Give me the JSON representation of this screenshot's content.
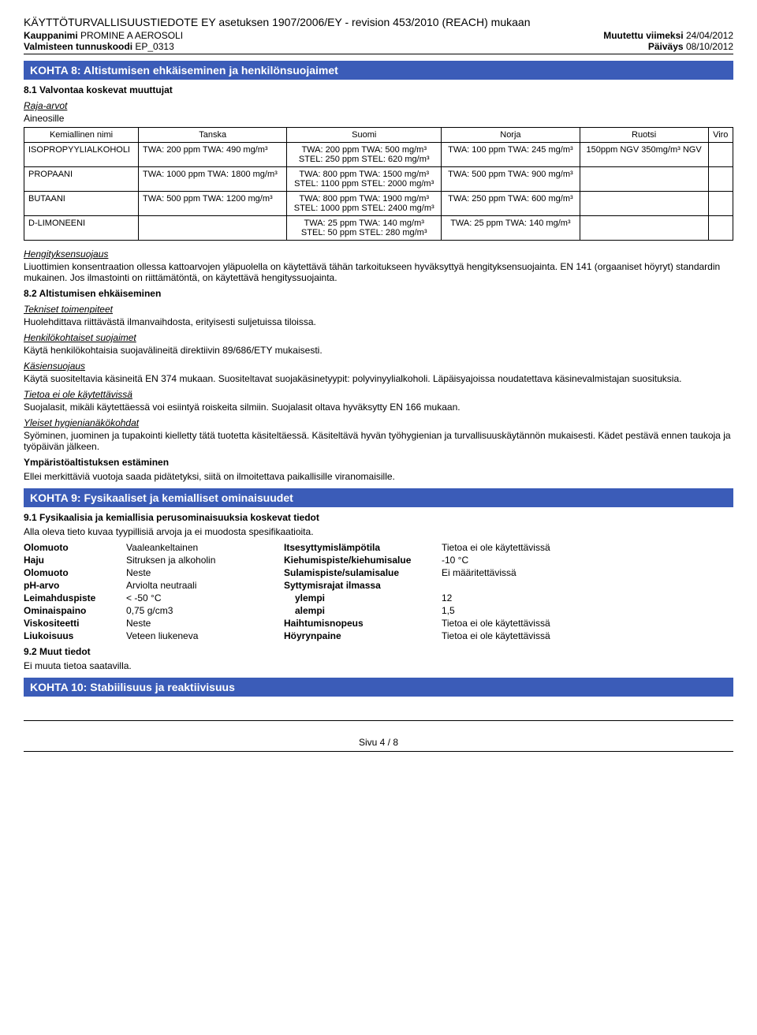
{
  "header": {
    "reg_line": "KÄYTTÖTURVALLISUUSTIEDOTE EY asetuksen 1907/2006/EY - revision 453/2010 (REACH) mukaan",
    "name_label": "Kauppanimi",
    "name_value": "PROMINE A AEROSOLI",
    "changed_label": "Muutettu viimeksi",
    "changed_value": "24/04/2012",
    "code_label": "Valmisteen tunnuskoodi",
    "code_value": "EP_0313",
    "date_label": "Päiväys",
    "date_value": "08/10/2012"
  },
  "section8": {
    "title": "KOHTA 8: Altistumisen ehkäiseminen ja henkilönsuojaimet",
    "sub1": "8.1 Valvontaa koskevat muuttujat",
    "raja": "Raja-arvot",
    "aineosille": "Aineosille",
    "cols": {
      "c0": "Kemiallinen nimi",
      "c1": "Tanska",
      "c2": "Suomi",
      "c3": "Norja",
      "c4": "Ruotsi",
      "c5": "Viro"
    },
    "rows": [
      {
        "name": "ISOPROPYYLIALKOHOLI",
        "c1": "TWA: 200 ppm TWA: 490 mg/m³",
        "c2": "TWA: 200 ppm TWA: 500 mg/m³\nSTEL: 250 ppm STEL: 620 mg/m³",
        "c3": "TWA: 100 ppm TWA: 245 mg/m³",
        "c4": "150ppm NGV 350mg/m³ NGV",
        "c5": ""
      },
      {
        "name": "PROPAANI",
        "c1": "TWA: 1000 ppm TWA: 1800 mg/m³",
        "c2": "TWA: 800 ppm TWA: 1500 mg/m³\nSTEL: 1100 ppm STEL: 2000 mg/m³",
        "c3": "TWA: 500 ppm TWA: 900 mg/m³",
        "c4": "",
        "c5": ""
      },
      {
        "name": "BUTAANI",
        "c1": "TWA: 500 ppm TWA: 1200 mg/m³",
        "c2": "TWA: 800 ppm TWA: 1900 mg/m³\nSTEL: 1000 ppm STEL: 2400 mg/m³",
        "c3": "TWA: 250 ppm TWA: 600 mg/m³",
        "c4": "",
        "c5": ""
      },
      {
        "name": "D-LIMONEENI",
        "c1": "",
        "c2": "TWA: 25 ppm TWA: 140 mg/m³\nSTEL: 50 ppm STEL: 280 mg/m³",
        "c3": "TWA: 25 ppm TWA: 140 mg/m³",
        "c4": "",
        "c5": ""
      }
    ],
    "hengitys_h": "Hengityksensuojaus",
    "hengitys_t": "Liuottimien konsentraation ollessa kattoarvojen yläpuolella on käytettävä tähän tarkoitukseen hyväksyttyä hengityksensuojainta. EN 141 (orgaaniset höyryt) standardin mukainen.  Jos ilmastointi on riittämätöntä, on käytettävä hengityssuojainta.",
    "sub2": "8.2 Altistumisen ehkäiseminen",
    "tek_h": "Tekniset toimenpiteet",
    "tek_t": "Huolehdittava riittävästä ilmanvaihdosta, erityisesti suljetuissa tiloissa.",
    "henk_h": "Henkilökohtaiset suojaimet",
    "henk_t": "Käytä henkilökohtaisia suojavälineitä direktiivin 89/686/ETY mukaisesti.",
    "kasi_h": "Käsiensuojaus",
    "kasi_t": "Käytä suositeltavia käsineitä EN 374 mukaan.  Suositeltavat suojakäsinetyypit: polyvinyylialkoholi.  Läpäisyajoissa noudatettava käsinevalmistajan suosituksia.",
    "tieto_h": "Tietoa ei ole käytettävissä",
    "tieto_t": "Suojalasit, mikäli käytettäessä voi esiintyä roiskeita silmiin. Suojalasit oltava hyväksytty EN 166 mukaan.",
    "yleiset_h": "Yleiset hygienianäkökohdat",
    "yleiset_t": "Syöminen, juominen ja tupakointi kielletty tätä tuotetta käsiteltäessä.  Käsiteltävä hyvän työhygienian ja turvallisuuskäytännön mukaisesti.  Kädet pestävä ennen taukoja ja työpäivän jälkeen.",
    "ymp_h": "Ympäristöaltistuksen estäminen",
    "ymp_t": "Ellei merkittäviä vuotoja saada pidätetyksi, siitä on ilmoitettava paikallisille viranomaisille."
  },
  "section9": {
    "title": "KOHTA 9: Fysikaaliset ja kemialliset ominaisuudet",
    "sub1": "9.1 Fysikaalisia ja kemiallisia perusominaisuuksia koskevat tiedot",
    "sub1_t": "Alla oleva tieto kuvaa tyypillisiä arvoja ja ei muodosta spesifikaatioita.",
    "left": [
      [
        "Olomuoto",
        "Vaaleankeltainen"
      ],
      [
        "Haju",
        "Sitruksen ja alkoholin"
      ],
      [
        "Olomuoto",
        "Neste"
      ],
      [
        "pH-arvo",
        "Arviolta neutraali"
      ],
      [
        "Leimahduspiste",
        "< -50 °C"
      ],
      [
        "Ominaispaino",
        "0,75 g/cm3"
      ],
      [
        "Viskositeetti",
        "Neste"
      ],
      [
        "Liukoisuus",
        "Veteen liukeneva"
      ]
    ],
    "right": [
      [
        "Itsesyttymislämpötila",
        "Tietoa ei ole käytettävissä"
      ],
      [
        "Kiehumispiste/kiehumisalue",
        "-10 °C"
      ],
      [
        "Sulamispiste/sulamisalue",
        "Ei määritettävissä"
      ],
      [
        "Syttymisrajat ilmassa",
        ""
      ],
      [
        "ylempi",
        "12"
      ],
      [
        "alempi",
        "1,5"
      ],
      [
        "Haihtumisnopeus",
        "Tietoa ei ole käytettävissä"
      ],
      [
        "Höyrynpaine",
        "Tietoa ei ole käytettävissä"
      ]
    ],
    "sub2": "9.2 Muut tiedot",
    "sub2_t": "Ei muuta tietoa saatavilla."
  },
  "section10": {
    "title": "KOHTA 10: Stabiilisuus ja reaktiivisuus"
  },
  "footer": "Sivu 4 / 8"
}
